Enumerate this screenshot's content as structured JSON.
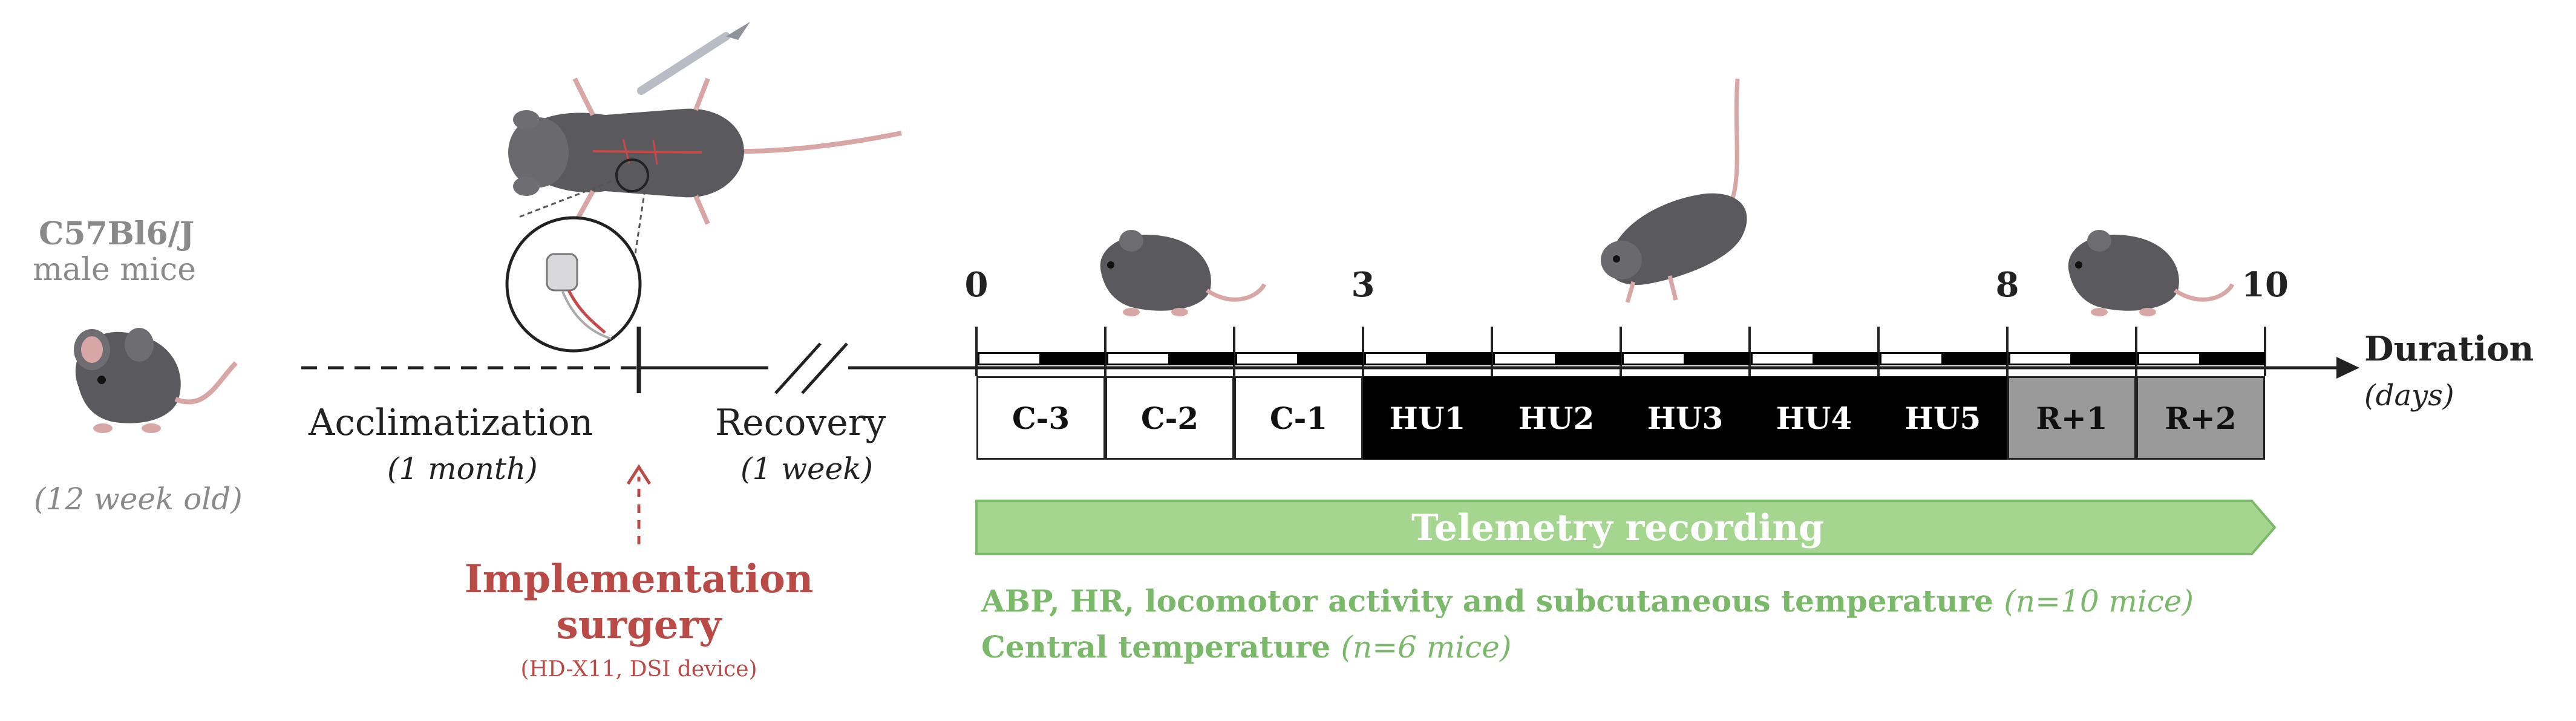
{
  "subject": {
    "strain": "C57Bl6/J",
    "sex": "male mice",
    "age": "(12 week old)"
  },
  "phases": {
    "acclimatization": {
      "label": "Acclimatization",
      "duration": "(1 month)"
    },
    "recovery": {
      "label": "Recovery",
      "duration": "(1 week)"
    }
  },
  "surgery": {
    "title_line1": "Implementation",
    "title_line2": "surgery",
    "device": "(HD-X11, DSI device)"
  },
  "timeline": {
    "axis_label": "Duration",
    "axis_unit": "(days)",
    "ticks": [
      {
        "day": 0,
        "label": "0"
      },
      {
        "day": 3,
        "label": "3"
      },
      {
        "day": 8,
        "label": "8"
      },
      {
        "day": 10,
        "label": "10"
      }
    ],
    "days": [
      {
        "label": "C-3",
        "group": "control"
      },
      {
        "label": "C-2",
        "group": "control"
      },
      {
        "label": "C-1",
        "group": "control"
      },
      {
        "label": "HU1",
        "group": "hindlimb-unloading"
      },
      {
        "label": "HU2",
        "group": "hindlimb-unloading"
      },
      {
        "label": "HU3",
        "group": "hindlimb-unloading"
      },
      {
        "label": "HU4",
        "group": "hindlimb-unloading"
      },
      {
        "label": "HU5",
        "group": "hindlimb-unloading"
      },
      {
        "label": "R+1",
        "group": "recovery"
      },
      {
        "label": "R+2",
        "group": "recovery"
      }
    ],
    "colors": {
      "control": "#ffffff",
      "hindlimb-unloading": "#000000",
      "recovery": "#9a9a9a"
    }
  },
  "telemetry": {
    "banner": "Telemetry recording",
    "line1": "ABP, HR, locomotor activity and subcutaneous temperature",
    "line1_n": "(n=10 mice)",
    "line2": "Central temperature",
    "line2_n": "(n=6 mice)",
    "color": "#7ab86a"
  }
}
